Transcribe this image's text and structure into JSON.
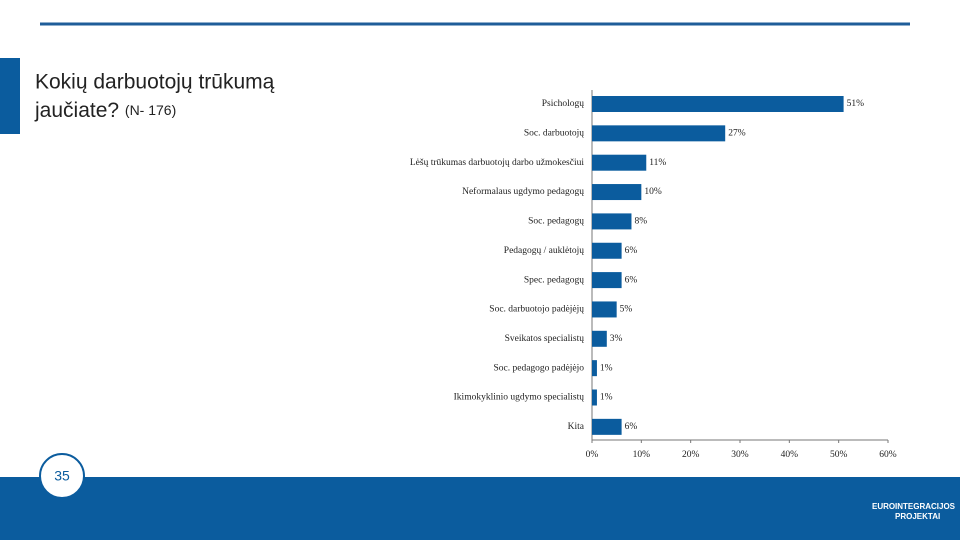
{
  "slide": {
    "title": "Kokių darbuotojų trūkumą",
    "title_line2": "jaučiate?",
    "note": "(N- 176)",
    "page_number": "35",
    "logo": {
      "line1": "EURO",
      "line2": "INTEGRACIJOS",
      "line3": "PROJEKTAI"
    }
  },
  "chart_data": {
    "type": "hbar",
    "color": "#0b5c9e",
    "categories": [
      "Psichologų",
      "Soc. darbuotojų",
      "Lėšų trūkumas darbuotojų darbo užmokesčiui",
      "Neformalaus ugdymo pedagogų",
      "Soc. pedagogų",
      "Pedagogų / auklėtojų",
      "Spec. pedagogų",
      "Soc. darbuotojo padėjėjų",
      "Sveikatos specialistų",
      "Soc. pedagogo padėjėjo",
      "Ikimokyklinio ugdymo specialistų",
      "Kita"
    ],
    "values": [
      51,
      27,
      11,
      10,
      8,
      6,
      6,
      5,
      3,
      1,
      1,
      6
    ],
    "value_labels": [
      "51%",
      "27%",
      "11%",
      "10%",
      "8%",
      "6%",
      "6%",
      "5%",
      "3%",
      "1%",
      "1%",
      "6%"
    ],
    "xlim": [
      0,
      60
    ],
    "xticks": [
      {
        "value": 0,
        "label": "0%"
      },
      {
        "value": 10,
        "label": "10%"
      },
      {
        "value": 20,
        "label": "20%"
      },
      {
        "value": 30,
        "label": "30%"
      },
      {
        "value": 40,
        "label": "40%"
      },
      {
        "value": 50,
        "label": "50%"
      },
      {
        "value": 60,
        "label": "60%"
      }
    ]
  }
}
